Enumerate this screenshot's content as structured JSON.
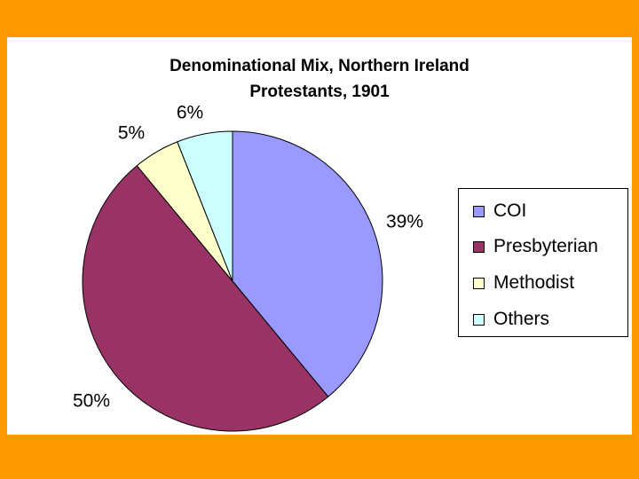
{
  "chart_data": {
    "type": "pie",
    "title_line1": "Denominational Mix, Northern Ireland",
    "title_line2": "Protestants, 1901",
    "categories": [
      "COI",
      "Presbyterian",
      "Methodist",
      "Others"
    ],
    "values": [
      39,
      50,
      5,
      6
    ],
    "value_labels": [
      "39%",
      "50%",
      "5%",
      "6%"
    ],
    "colors": [
      "#9999FF",
      "#993366",
      "#FFFFCC",
      "#CCFFFF"
    ],
    "legend_placement": "right"
  }
}
